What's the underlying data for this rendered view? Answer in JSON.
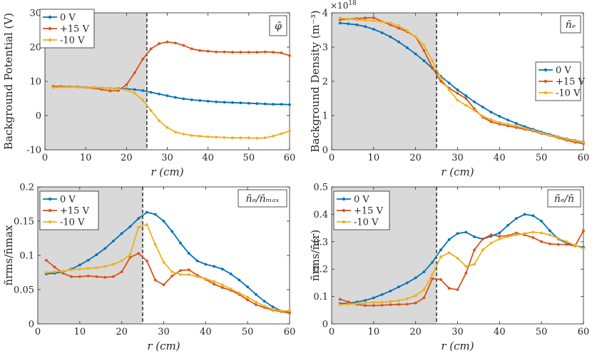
{
  "colors": {
    "blue": "#0072BD",
    "orange": "#D95319",
    "yellow": "#EDB120",
    "shade": "#D9D9D9"
  },
  "chart_data": [
    {
      "type": "line",
      "title": "",
      "annotation": "φ̄",
      "xlabel": "r (cm)",
      "ylabel": "Background Potential (V)",
      "xlim": [
        0,
        60
      ],
      "ylim": [
        -10,
        30
      ],
      "xticks": [
        "0",
        "10",
        "20",
        "30",
        "40",
        "50",
        "60"
      ],
      "yticks": [
        "-10",
        "0",
        "10",
        "20",
        "30"
      ],
      "shaded_region": [
        0,
        25
      ],
      "dashed_vline": 25,
      "legend_location": "top-left",
      "series": [
        {
          "name": "0 V",
          "color": "blue",
          "x": [
            2,
            4,
            6,
            8,
            10,
            12,
            14,
            16,
            18,
            20,
            22,
            24,
            26,
            28,
            30,
            32,
            34,
            36,
            38,
            40,
            42,
            44,
            46,
            48,
            50,
            52,
            54,
            56,
            58,
            60
          ],
          "y": [
            8.5,
            8.5,
            8.4,
            8.4,
            8.3,
            8.2,
            8.1,
            8.0,
            7.9,
            7.8,
            7.6,
            7.3,
            6.8,
            6.3,
            5.8,
            5.3,
            4.9,
            4.6,
            4.4,
            4.2,
            4.0,
            3.9,
            3.8,
            3.7,
            3.6,
            3.5,
            3.4,
            3.3,
            3.3,
            3.2
          ]
        },
        {
          "name": "+15 V",
          "color": "orange",
          "x": [
            2,
            4,
            6,
            8,
            10,
            12,
            14,
            16,
            18,
            20,
            22,
            24,
            26,
            28,
            30,
            32,
            34,
            36,
            38,
            40,
            42,
            44,
            46,
            48,
            50,
            52,
            54,
            56,
            58,
            60
          ],
          "y": [
            8.5,
            8.5,
            8.4,
            8.3,
            8.2,
            8.0,
            7.6,
            7.2,
            7.3,
            9.0,
            12.5,
            16.5,
            19.5,
            21.0,
            21.5,
            21.2,
            20.5,
            19.5,
            19.0,
            18.8,
            18.6,
            18.6,
            18.5,
            18.5,
            18.5,
            18.5,
            18.6,
            18.5,
            18.3,
            17.5
          ]
        },
        {
          "name": "-10 V",
          "color": "yellow",
          "x": [
            2,
            4,
            6,
            8,
            10,
            12,
            14,
            16,
            18,
            20,
            22,
            24,
            26,
            28,
            30,
            32,
            34,
            36,
            38,
            40,
            42,
            44,
            46,
            48,
            50,
            52,
            54,
            56,
            58,
            60
          ],
          "y": [
            8.2,
            8.3,
            8.3,
            8.3,
            8.3,
            8.2,
            8.1,
            8.0,
            7.8,
            7.5,
            6.5,
            4.5,
            1.5,
            -1.5,
            -3.5,
            -4.8,
            -5.4,
            -5.8,
            -6.0,
            -6.2,
            -6.3,
            -6.4,
            -6.5,
            -6.5,
            -6.5,
            -6.6,
            -6.5,
            -6.0,
            -5.3,
            -4.5
          ]
        }
      ]
    },
    {
      "type": "line",
      "title": "",
      "annotation": "n̄ₑ",
      "multiplier": "×10",
      "multiplier_exp": "18",
      "xlabel": "r (cm)",
      "ylabel": "Background Density (m⁻³)",
      "xlim": [
        0,
        60
      ],
      "ylim": [
        0,
        4
      ],
      "xticks": [
        "0",
        "10",
        "20",
        "30",
        "40",
        "50",
        "60"
      ],
      "yticks": [
        "0",
        "1",
        "2",
        "3",
        "4"
      ],
      "shaded_region": [
        0,
        25
      ],
      "dashed_vline": 25,
      "legend_location": "right",
      "series": [
        {
          "name": "0 V",
          "color": "blue",
          "x": [
            2,
            4,
            6,
            8,
            10,
            12,
            14,
            16,
            18,
            20,
            22,
            24,
            26,
            28,
            30,
            32,
            34,
            36,
            38,
            40,
            42,
            44,
            46,
            48,
            50,
            52,
            54,
            56,
            58,
            60
          ],
          "y": [
            3.7,
            3.68,
            3.65,
            3.6,
            3.52,
            3.42,
            3.3,
            3.15,
            2.98,
            2.8,
            2.6,
            2.38,
            2.15,
            1.95,
            1.75,
            1.58,
            1.4,
            1.25,
            1.1,
            0.98,
            0.87,
            0.77,
            0.68,
            0.6,
            0.52,
            0.45,
            0.38,
            0.32,
            0.27,
            0.23
          ]
        },
        {
          "name": "+15 V",
          "color": "orange",
          "x": [
            2,
            4,
            6,
            8,
            10,
            12,
            14,
            16,
            18,
            20,
            22,
            24,
            26,
            28,
            30,
            32,
            34,
            36,
            38,
            40,
            42,
            44,
            46,
            48,
            50,
            52,
            54,
            56,
            58,
            60
          ],
          "y": [
            3.8,
            3.82,
            3.83,
            3.85,
            3.86,
            3.75,
            3.65,
            3.55,
            3.45,
            3.3,
            2.9,
            2.4,
            2.0,
            1.8,
            1.65,
            1.5,
            1.2,
            0.95,
            0.82,
            0.75,
            0.7,
            0.65,
            0.6,
            0.55,
            0.48,
            0.42,
            0.35,
            0.28,
            0.22,
            0.18
          ]
        },
        {
          "name": "-10 V",
          "color": "yellow",
          "x": [
            2,
            4,
            6,
            8,
            10,
            12,
            14,
            16,
            18,
            20,
            22,
            24,
            26,
            28,
            30,
            32,
            34,
            36,
            38,
            40,
            42,
            44,
            46,
            48,
            50,
            52,
            54,
            56,
            58,
            60
          ],
          "y": [
            3.85,
            3.82,
            3.8,
            3.78,
            3.77,
            3.74,
            3.7,
            3.62,
            3.48,
            3.3,
            3.05,
            2.6,
            2.1,
            1.75,
            1.45,
            1.3,
            1.15,
            0.98,
            0.88,
            0.8,
            0.75,
            0.7,
            0.63,
            0.57,
            0.5,
            0.43,
            0.37,
            0.31,
            0.26,
            0.22
          ]
        }
      ]
    },
    {
      "type": "line",
      "title": "",
      "annotation": "ñₑ/n̄ₘₐₓ",
      "xlabel": "r (cm)",
      "ylabel": "ñrms/n̄max",
      "xlim": [
        0,
        60
      ],
      "ylim": [
        0,
        0.2
      ],
      "xticks": [
        "0",
        "10",
        "20",
        "30",
        "40",
        "50",
        "60"
      ],
      "yticks": [
        "0",
        "0.05",
        "0.1",
        "0.15",
        "0.2"
      ],
      "shaded_region": [
        0,
        25
      ],
      "dashed_vline": 25,
      "legend_location": "top-left",
      "series": [
        {
          "name": "0 V",
          "color": "blue",
          "x": [
            2,
            4,
            6,
            8,
            10,
            12,
            14,
            16,
            18,
            20,
            22,
            24,
            26,
            28,
            30,
            32,
            34,
            36,
            38,
            40,
            42,
            44,
            46,
            48,
            50,
            52,
            54,
            56,
            58,
            60
          ],
          "y": [
            0.073,
            0.074,
            0.076,
            0.08,
            0.086,
            0.093,
            0.101,
            0.11,
            0.121,
            0.132,
            0.142,
            0.154,
            0.163,
            0.16,
            0.15,
            0.135,
            0.118,
            0.103,
            0.092,
            0.087,
            0.084,
            0.08,
            0.073,
            0.064,
            0.054,
            0.043,
            0.033,
            0.025,
            0.019,
            0.017
          ]
        },
        {
          "name": "+15 V",
          "color": "orange",
          "x": [
            2,
            4,
            6,
            8,
            10,
            12,
            14,
            16,
            18,
            20,
            22,
            24,
            26,
            28,
            30,
            32,
            34,
            36,
            38,
            40,
            42,
            44,
            46,
            48,
            50,
            52,
            54,
            56,
            58,
            60
          ],
          "y": [
            0.093,
            0.083,
            0.074,
            0.069,
            0.069,
            0.07,
            0.069,
            0.068,
            0.069,
            0.076,
            0.097,
            0.103,
            0.092,
            0.064,
            0.057,
            0.07,
            0.078,
            0.079,
            0.071,
            0.065,
            0.058,
            0.053,
            0.049,
            0.043,
            0.035,
            0.028,
            0.024,
            0.02,
            0.018,
            0.016
          ]
        },
        {
          "name": "-10 V",
          "color": "yellow",
          "x": [
            2,
            4,
            6,
            8,
            10,
            12,
            14,
            16,
            18,
            20,
            22,
            24,
            26,
            28,
            30,
            32,
            34,
            36,
            38,
            40,
            42,
            44,
            46,
            48,
            50,
            52,
            54,
            56,
            58,
            60
          ],
          "y": [
            0.075,
            0.076,
            0.077,
            0.079,
            0.08,
            0.081,
            0.082,
            0.084,
            0.087,
            0.092,
            0.101,
            0.141,
            0.145,
            0.116,
            0.09,
            0.076,
            0.072,
            0.072,
            0.069,
            0.066,
            0.062,
            0.057,
            0.051,
            0.045,
            0.039,
            0.032,
            0.026,
            0.021,
            0.019,
            0.019
          ]
        }
      ]
    },
    {
      "type": "line",
      "title": "",
      "annotation": "ñₑ/n̄",
      "xlabel": "r (cm)",
      "ylabel": "ñrms/n̄(r)",
      "xlim": [
        0,
        60
      ],
      "ylim": [
        0,
        0.5
      ],
      "xticks": [
        "0",
        "10",
        "20",
        "30",
        "40",
        "50",
        "60"
      ],
      "yticks": [
        "0",
        "0.1",
        "0.2",
        "0.3",
        "0.4",
        "0.5"
      ],
      "shaded_region": [
        0,
        25
      ],
      "dashed_vline": 25,
      "legend_location": "top-left",
      "series": [
        {
          "name": "0 V",
          "color": "blue",
          "x": [
            2,
            4,
            6,
            8,
            10,
            12,
            14,
            16,
            18,
            20,
            22,
            24,
            26,
            28,
            30,
            32,
            34,
            36,
            38,
            40,
            42,
            44,
            46,
            48,
            50,
            52,
            54,
            56,
            58,
            60
          ],
          "y": [
            0.074,
            0.075,
            0.08,
            0.086,
            0.095,
            0.107,
            0.12,
            0.135,
            0.15,
            0.168,
            0.19,
            0.225,
            0.27,
            0.308,
            0.33,
            0.335,
            0.318,
            0.31,
            0.32,
            0.332,
            0.36,
            0.385,
            0.4,
            0.395,
            0.375,
            0.34,
            0.31,
            0.295,
            0.285,
            0.28
          ]
        },
        {
          "name": "+15 V",
          "color": "orange",
          "x": [
            2,
            4,
            6,
            8,
            10,
            12,
            14,
            16,
            18,
            20,
            22,
            24,
            26,
            28,
            30,
            32,
            34,
            36,
            38,
            40,
            42,
            44,
            46,
            48,
            50,
            52,
            54,
            56,
            58,
            60
          ],
          "y": [
            0.09,
            0.08,
            0.071,
            0.067,
            0.067,
            0.068,
            0.07,
            0.071,
            0.072,
            0.076,
            0.095,
            0.165,
            0.162,
            0.13,
            0.125,
            0.185,
            0.27,
            0.31,
            0.325,
            0.32,
            0.322,
            0.332,
            0.325,
            0.315,
            0.3,
            0.292,
            0.29,
            0.29,
            0.285,
            0.34
          ]
        },
        {
          "name": "-10 V",
          "color": "yellow",
          "x": [
            2,
            4,
            6,
            8,
            10,
            12,
            14,
            16,
            18,
            20,
            22,
            24,
            26,
            28,
            30,
            32,
            34,
            36,
            38,
            40,
            42,
            44,
            46,
            48,
            50,
            52,
            54,
            56,
            58,
            60
          ],
          "y": [
            0.07,
            0.072,
            0.074,
            0.076,
            0.078,
            0.079,
            0.082,
            0.085,
            0.092,
            0.103,
            0.125,
            0.18,
            0.245,
            0.26,
            0.24,
            0.21,
            0.218,
            0.27,
            0.295,
            0.31,
            0.318,
            0.325,
            0.33,
            0.335,
            0.332,
            0.325,
            0.312,
            0.3,
            0.287,
            0.275
          ]
        }
      ]
    }
  ]
}
